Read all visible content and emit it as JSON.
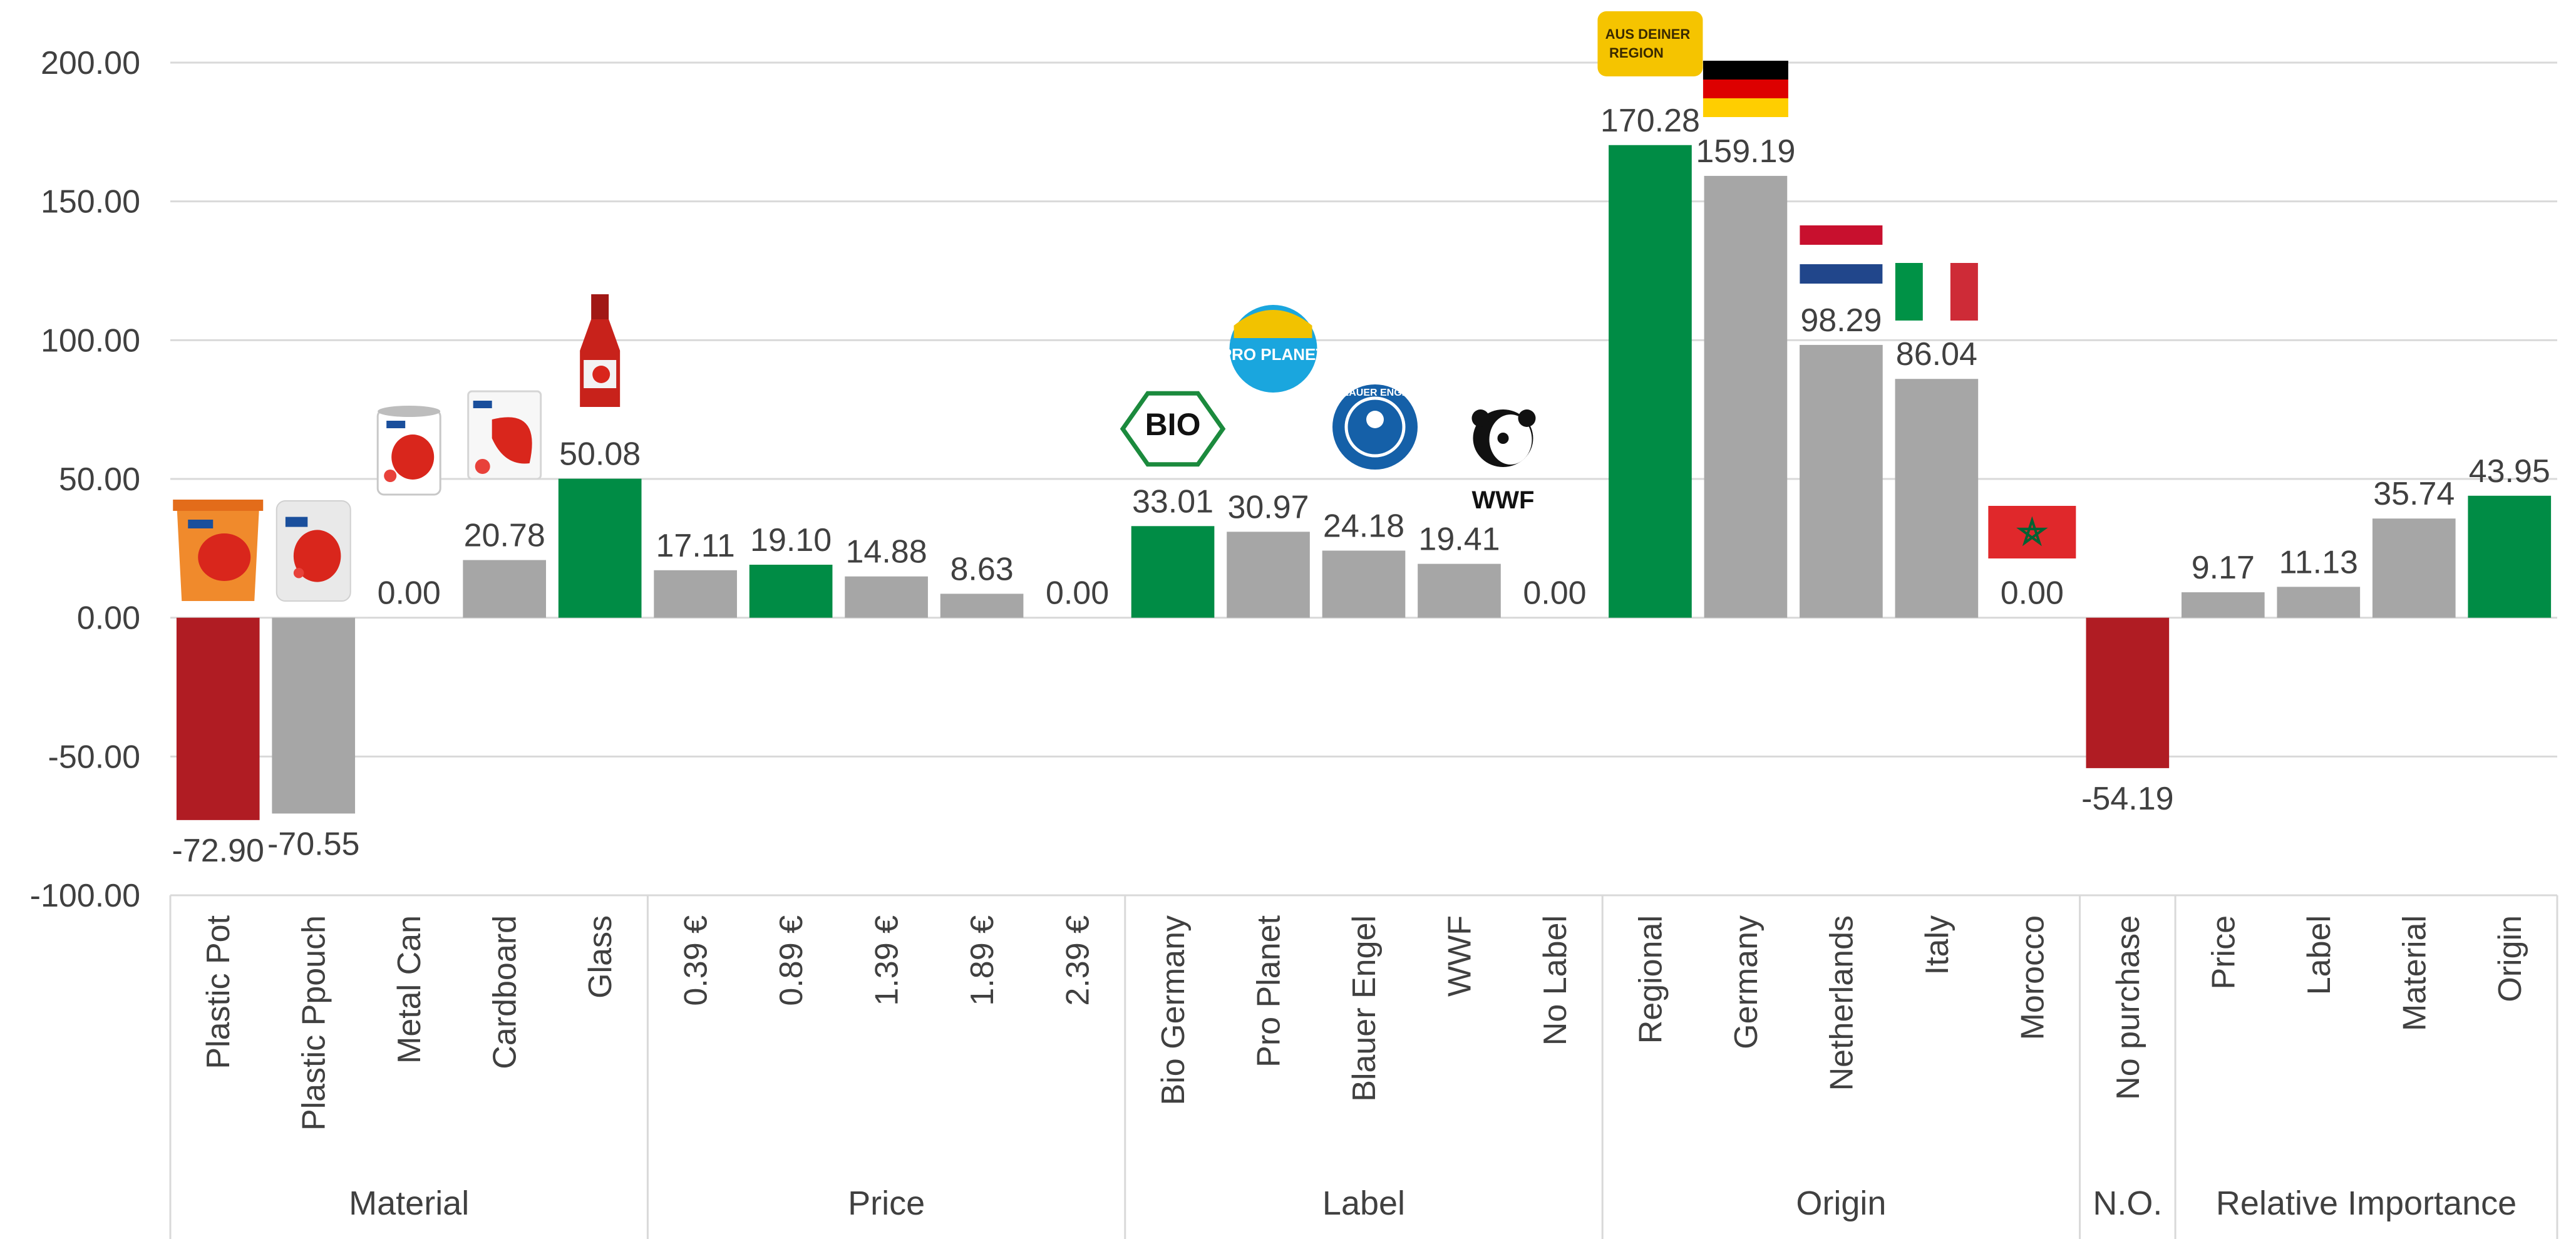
{
  "chart_data": {
    "type": "bar",
    "title": "",
    "xlabel": "",
    "ylabel": "",
    "ylim": [
      -100,
      200
    ],
    "y_ticks": [
      -100,
      -50,
      0,
      50,
      100,
      150,
      200
    ],
    "y_tick_labels": [
      "-100.00",
      "-50.00",
      "0.00",
      "50.00",
      "100.00",
      "150.00",
      "200.00"
    ],
    "grid": true,
    "colors": {
      "highlight_positive": "#008C45",
      "highlight_negative": "#B01C23",
      "neutral": "#A6A6A6"
    },
    "groups": [
      {
        "label": "Material",
        "categories": [
          {
            "label": "Plastic Pot",
            "value": -72.9,
            "display": "-72.90",
            "color": "negative",
            "icon": "plastic-pot-product-icon"
          },
          {
            "label": "Plastic Ppouch",
            "value": -70.55,
            "display": "-70.55",
            "color": "neutral",
            "icon": "plastic-pouch-product-icon"
          },
          {
            "label": "Metal Can",
            "value": 0.0,
            "display": "0.00",
            "color": "neutral",
            "icon": "metal-can-product-icon"
          },
          {
            "label": "Cardboard",
            "value": 20.78,
            "display": "20.78",
            "color": "neutral",
            "icon": "cardboard-product-icon"
          },
          {
            "label": "Glass",
            "value": 50.08,
            "display": "50.08",
            "color": "positive",
            "icon": "glass-bottle-product-icon"
          }
        ]
      },
      {
        "label": "Price",
        "categories": [
          {
            "label": "0.39 €",
            "value": 17.11,
            "display": "17.11",
            "color": "neutral"
          },
          {
            "label": "0.89 €",
            "value": 19.1,
            "display": "19.10",
            "color": "positive"
          },
          {
            "label": "1.39 €",
            "value": 14.88,
            "display": "14.88",
            "color": "neutral"
          },
          {
            "label": "1.89 €",
            "value": 8.63,
            "display": "8.63",
            "color": "neutral"
          },
          {
            "label": "2.39 €",
            "value": 0.0,
            "display": "0.00",
            "color": "neutral"
          }
        ]
      },
      {
        "label": "Label",
        "categories": [
          {
            "label": "Bio Germany",
            "value": 33.01,
            "display": "33.01",
            "color": "positive",
            "icon": "bio-seal-icon"
          },
          {
            "label": "Pro Planet",
            "value": 30.97,
            "display": "30.97",
            "color": "neutral",
            "icon": "pro-planet-logo-icon"
          },
          {
            "label": "Blauer Engel",
            "value": 24.18,
            "display": "24.18",
            "color": "neutral",
            "icon": "blauer-engel-logo-icon"
          },
          {
            "label": "WWF",
            "value": 19.41,
            "display": "19.41",
            "color": "neutral",
            "icon": "wwf-panda-logo-icon"
          },
          {
            "label": "No Label",
            "value": 0.0,
            "display": "0.00",
            "color": "neutral"
          }
        ]
      },
      {
        "label": "Origin",
        "categories": [
          {
            "label": "Regional",
            "value": 170.28,
            "display": "170.28",
            "color": "positive",
            "icon": "regional-badge-icon"
          },
          {
            "label": "Germany",
            "value": 159.19,
            "display": "159.19",
            "color": "neutral",
            "icon": "germany-flag-icon"
          },
          {
            "label": "Netherlands",
            "value": 98.29,
            "display": "98.29",
            "color": "neutral",
            "icon": "netherlands-flag-icon"
          },
          {
            "label": "Italy",
            "value": 86.04,
            "display": "86.04",
            "color": "neutral",
            "icon": "italy-flag-icon"
          },
          {
            "label": "Morocco",
            "value": 0.0,
            "display": "0.00",
            "color": "neutral",
            "icon": "morocco-flag-icon"
          }
        ]
      },
      {
        "label": "N.O.",
        "categories": [
          {
            "label": "No purchase",
            "value": -54.19,
            "display": "-54.19",
            "color": "negative"
          }
        ]
      },
      {
        "label": "Relative Importance",
        "categories": [
          {
            "label": "Price",
            "value": 9.17,
            "display": "9.17",
            "color": "neutral"
          },
          {
            "label": "Label",
            "value": 11.13,
            "display": "11.13",
            "color": "neutral"
          },
          {
            "label": "Material",
            "value": 35.74,
            "display": "35.74",
            "color": "neutral"
          },
          {
            "label": "Origin",
            "value": 43.95,
            "display": "43.95",
            "color": "positive"
          }
        ]
      }
    ],
    "icon_texts": {
      "regional_badge": "AUS DEINER REGION",
      "bio_seal": "BIO",
      "pro_planet": "PRO PLANET",
      "blauer_engel": "BLAUER ENGEL",
      "wwf": "WWF"
    }
  }
}
